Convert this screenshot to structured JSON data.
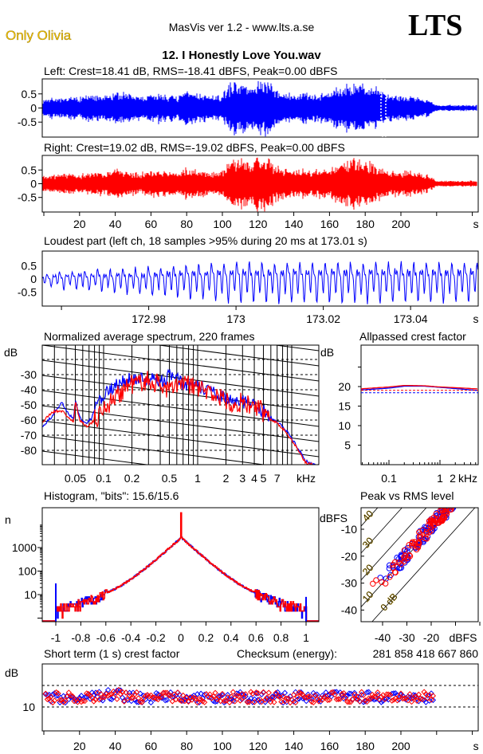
{
  "header": {
    "artist": "Only Olivia",
    "app": "MasVis ver 1.2 - www.lts.a.se",
    "logo": "LTS",
    "file": "12. I Honestly Love You.wav"
  },
  "colors": {
    "left": "#0000ff",
    "right": "#ff0000",
    "artist": "#f0c000"
  },
  "chart_data": [
    {
      "id": "left-waveform",
      "type": "area",
      "title": "Left: Crest=18.41 dB, RMS=-18.41 dBFS, Peak=0.00 dBFS",
      "xlim": [
        0,
        243
      ],
      "ylim": [
        -1,
        1
      ],
      "yticks": [
        "0.5",
        "0",
        "-0.5"
      ],
      "ytick_values": [
        0.5,
        0,
        -0.5
      ],
      "envelope_step_s": 5,
      "envelope": [
        0.3,
        0.35,
        0.3,
        0.4,
        0.35,
        0.45,
        0.4,
        0.4,
        0.55,
        0.5,
        0.45,
        0.4,
        0.45,
        0.5,
        0.45,
        0.4,
        0.6,
        0.5,
        0.45,
        0.4,
        0.45,
        0.85,
        0.9,
        0.7,
        0.9,
        0.95,
        0.6,
        0.5,
        0.45,
        0.5,
        0.45,
        0.5,
        0.55,
        0.7,
        0.8,
        0.85,
        0.8,
        0.75,
        0.5,
        0.45,
        0.4,
        0.45,
        0.35,
        0.3,
        0.1
      ]
    },
    {
      "id": "right-waveform",
      "type": "area",
      "title": "Right: Crest=19.02 dB, RMS=-19.02 dBFS, Peak=0.00 dBFS",
      "xlim": [
        0,
        243
      ],
      "ylim": [
        -1,
        1
      ],
      "yticks": [
        "0.5",
        "0",
        "-0.5"
      ],
      "ytick_values": [
        0.5,
        0,
        -0.5
      ],
      "xticks": [
        "20",
        "40",
        "60",
        "80",
        "100",
        "120",
        "140",
        "160",
        "180",
        "200",
        "s"
      ],
      "xtick_values": [
        20,
        40,
        60,
        80,
        100,
        120,
        140,
        160,
        180,
        200,
        242
      ],
      "envelope_step_s": 5,
      "envelope": [
        0.3,
        0.3,
        0.35,
        0.35,
        0.3,
        0.4,
        0.4,
        0.4,
        0.5,
        0.45,
        0.4,
        0.4,
        0.45,
        0.5,
        0.45,
        0.4,
        0.55,
        0.5,
        0.45,
        0.4,
        0.45,
        0.8,
        0.85,
        0.75,
        0.95,
        0.9,
        0.6,
        0.5,
        0.45,
        0.5,
        0.45,
        0.5,
        0.5,
        0.75,
        0.8,
        0.85,
        0.75,
        0.7,
        0.5,
        0.45,
        0.4,
        0.45,
        0.35,
        0.3,
        0.1
      ]
    },
    {
      "id": "loudest-part",
      "type": "line",
      "title": "Loudest part (left  ch, 18 samples >95% during 20 ms at 173.01 s)",
      "xlim": [
        172.9556,
        173.0555
      ],
      "ylim": [
        -1,
        1
      ],
      "yticks": [
        "0.5",
        "0",
        "-0.5"
      ],
      "ytick_values": [
        0.5,
        0,
        -0.5
      ],
      "xticks": [
        "172.98",
        "173",
        "173.02",
        "173.04",
        "s"
      ],
      "xtick_values": [
        172.98,
        173.0,
        173.02,
        173.04,
        173.055
      ]
    },
    {
      "id": "spectrum",
      "type": "line",
      "title": "Normalized average spectrum, 220 frames",
      "ylabel": "dB",
      "xlabel": "kHz",
      "xscale": "log",
      "xlim": [
        0.0222,
        19.4
      ],
      "ylim": [
        -92,
        -10
      ],
      "yticks": [
        "-30",
        "-40",
        "-50",
        "-60",
        "-70",
        "-80"
      ],
      "ytick_values": [
        -30,
        -40,
        -50,
        -60,
        -70,
        -80
      ],
      "xticks": [
        "0.05",
        "0.1",
        "0.2",
        "0.5",
        "1",
        "2",
        "3",
        "4",
        "5",
        "7",
        "kHz"
      ],
      "xtick_values": [
        0.05,
        0.1,
        0.2,
        0.5,
        1,
        2,
        3,
        4,
        5,
        7,
        14.5
      ],
      "series": [
        {
          "name": "left",
          "f": [
            0.022,
            0.028,
            0.032,
            0.036,
            0.042,
            0.048,
            0.05,
            0.056,
            0.065,
            0.075,
            0.085,
            0.1,
            0.13,
            0.17,
            0.2,
            0.3,
            0.45,
            0.5,
            0.7,
            1,
            1.5,
            2,
            3,
            4,
            5,
            6,
            7,
            9,
            11,
            14,
            18
          ],
          "db": [
            -65,
            -58,
            -52,
            -49,
            -55,
            -60,
            -47,
            -58,
            -63,
            -58,
            -50,
            -44,
            -38,
            -34,
            -32,
            -33,
            -34,
            -30,
            -36,
            -38,
            -42,
            -46,
            -48,
            -50,
            -54,
            -58,
            -61,
            -68,
            -76,
            -87,
            -90
          ]
        },
        {
          "name": "right",
          "f": [
            0.022,
            0.028,
            0.032,
            0.036,
            0.042,
            0.048,
            0.05,
            0.056,
            0.065,
            0.075,
            0.085,
            0.1,
            0.13,
            0.17,
            0.2,
            0.3,
            0.45,
            0.5,
            0.7,
            1,
            1.5,
            2,
            3,
            4,
            5,
            6,
            7,
            9,
            11,
            14,
            18
          ],
          "db": [
            -62,
            -55,
            -54,
            -54,
            -58,
            -62,
            -48,
            -60,
            -64,
            -62,
            -58,
            -52,
            -46,
            -38,
            -36,
            -34,
            -38,
            -40,
            -36,
            -39,
            -43,
            -47,
            -49,
            -51,
            -55,
            -59,
            -62,
            -69,
            -77,
            -88,
            -90
          ]
        }
      ]
    },
    {
      "id": "allpassed-crest",
      "type": "line",
      "title": "Allpassed crest factor",
      "ylabel": "dB",
      "xlabel": "kHz",
      "xscale": "log",
      "ylim": [
        0,
        30
      ],
      "yticks": [
        "20",
        "15",
        "10",
        "5"
      ],
      "ytick_values": [
        20,
        15,
        10,
        5
      ],
      "xticks": [
        "0.1",
        "1",
        "2",
        "kHz"
      ],
      "series": [
        {
          "name": "left",
          "f": [
            0.02,
            0.1,
            0.2,
            0.5,
            1,
            3,
            10,
            20
          ],
          "db": [
            19.0,
            19.6,
            20.1,
            20.1,
            19.8,
            19.3,
            18.7,
            18.6
          ],
          "reference": 18.41
        },
        {
          "name": "right",
          "f": [
            0.02,
            0.1,
            0.2,
            0.5,
            1,
            3,
            10,
            20
          ],
          "db": [
            19.3,
            19.9,
            20.3,
            20.2,
            19.9,
            19.6,
            19.2,
            19.1
          ],
          "reference": 19.02
        }
      ]
    },
    {
      "id": "histogram",
      "type": "bar",
      "title": "Histogram, \"bits\": 15.6/15.6",
      "ylabel": "n",
      "yscale": "log",
      "xlim": [
        -1.1,
        1.1
      ],
      "yticks": [
        "1000",
        "100",
        "10"
      ],
      "ytick_values": [
        1000,
        100,
        10
      ],
      "xticks": [
        "-1",
        "-0.8",
        "-0.6",
        "-0.4",
        "-0.2",
        "0",
        "0.2",
        "0.4",
        "0.6",
        "0.8",
        "1"
      ],
      "peak_count": 3000,
      "clip_count_left": 30,
      "clip_count_right": 8
    },
    {
      "id": "peak-vs-rms",
      "type": "scatter",
      "title": "Peak vs RMS level",
      "xlabel": "dBFS",
      "ylabel": "dBFS",
      "xlim": [
        -49,
        -1
      ],
      "ylim": [
        -44,
        -2
      ],
      "yticks": [
        "-10",
        "-20",
        "-30",
        "-40"
      ],
      "ytick_values": [
        -10,
        -20,
        -30,
        -40
      ],
      "xticks": [
        "-40",
        "-30",
        "-20",
        "dBFS"
      ],
      "xtick_values": [
        -40,
        -30,
        -20,
        -7
      ],
      "crest_lines": [
        "40",
        "30",
        "20",
        "10",
        "0 dB"
      ],
      "crest_line_values": [
        40,
        30,
        20,
        10,
        0
      ],
      "crest_range_db": [
        8,
        14
      ]
    },
    {
      "id": "short-term-crest",
      "type": "scatter",
      "title": "Short term (1 s) crest factor",
      "checksum_label": "Checksum (energy):",
      "checksum": "281 858 418 667 860",
      "ylabel": "dB",
      "ylim": [
        5,
        28
      ],
      "yticks": [
        "10"
      ],
      "ytick_values": [
        10
      ],
      "reference_lines": [
        10,
        20
      ],
      "xticks": [
        "20",
        "40",
        "60",
        "80",
        "100",
        "120",
        "140",
        "160",
        "180",
        "200",
        "s"
      ],
      "xtick_values": [
        20,
        40,
        60,
        80,
        100,
        120,
        140,
        160,
        180,
        200,
        242
      ],
      "mean_db": 14.5,
      "duration_s": 218
    }
  ]
}
